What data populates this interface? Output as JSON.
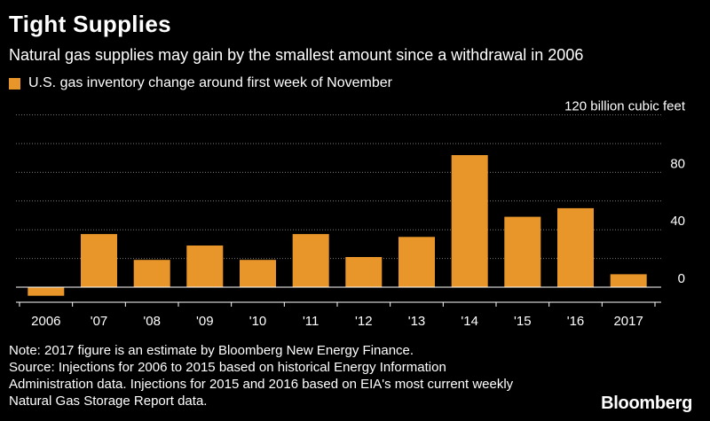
{
  "title": "Tight Supplies",
  "subtitle": "Natural gas supplies may gain by the smallest amount since a withdrawal in 2006",
  "legend_label": "U.S. gas inventory change around first week of November",
  "bar_color": "#E8962A",
  "notes": [
    "Note: 2017 figure is an estimate by Bloomberg New Energy Finance.",
    "Source: Injections for 2006 to 2015 based on historical Energy Information",
    "Administration data. Injections for 2015 and 2016 based on EIA's most current weekly",
    "Natural Gas Storage Report data."
  ],
  "brand": "Bloomberg",
  "chart_data": {
    "type": "bar",
    "categories": [
      "2006",
      "'07",
      "'08",
      "'09",
      "'10",
      "'11",
      "'12",
      "'13",
      "'14",
      "'15",
      "'16",
      "2017"
    ],
    "values": [
      -6,
      37,
      19,
      29,
      19,
      37,
      21,
      35,
      92,
      49,
      55,
      9
    ],
    "ylim": [
      -8,
      120
    ],
    "yticks": [
      0,
      40,
      80,
      120
    ],
    "ytick_labels": [
      "0",
      "40",
      "80",
      "120 billion cubic feet"
    ],
    "grid": true,
    "axis_side": "right"
  }
}
